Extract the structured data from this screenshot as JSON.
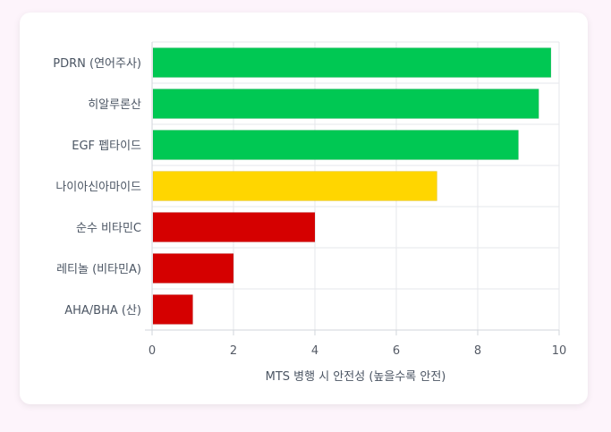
{
  "chart_data": {
    "type": "bar",
    "orientation": "horizontal",
    "categories": [
      "PDRN (연어주사)",
      "히알루론산",
      "EGF 펩타이드",
      "나이아신아마이드",
      "순수 비타민C",
      "레티놀 (비타민A)",
      "AHA/BHA (산)"
    ],
    "values": [
      9.8,
      9.5,
      9,
      7,
      4,
      2,
      1
    ],
    "bar_colors": [
      "#00c853",
      "#00c853",
      "#00c853",
      "#ffd600",
      "#d50000",
      "#d50000",
      "#d50000"
    ],
    "xlabel": "MTS 병행 시 안전성 (높을수록 안전)",
    "ylabel": "",
    "xlim": [
      0,
      10
    ],
    "xticks": [
      0,
      2,
      4,
      6,
      8,
      10
    ],
    "grid": true,
    "legend": "none"
  }
}
